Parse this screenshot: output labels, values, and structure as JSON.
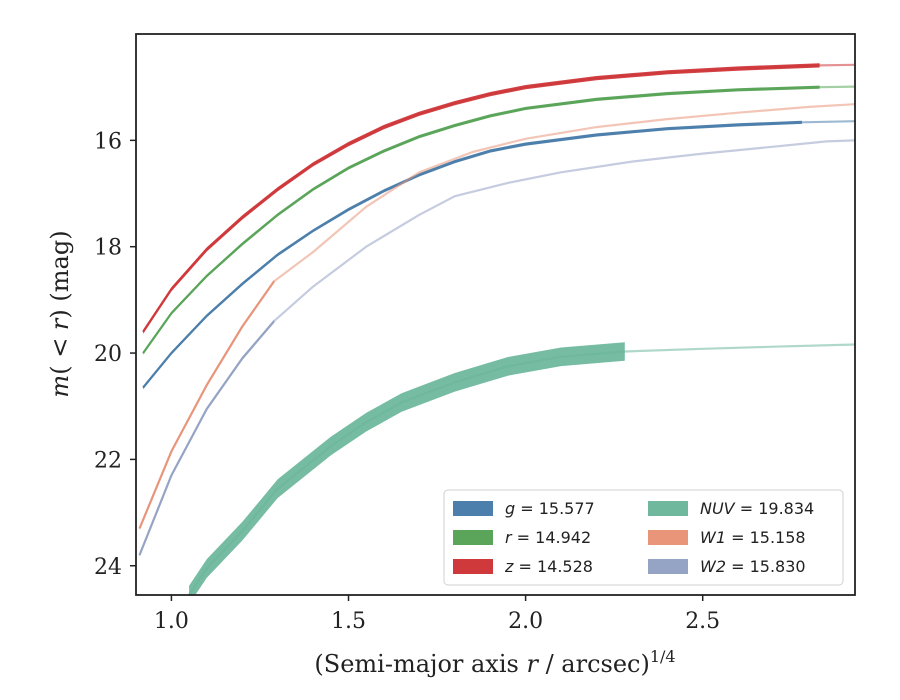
{
  "chart_data": {
    "type": "line",
    "title": "",
    "xlabel": "(Semi-major axis r / arcsec)^{1/4}",
    "xlabel_parts": {
      "pre": "(Semi-major axis ",
      "var": "r",
      "post": " / arcsec)",
      "sup": "1/4"
    },
    "ylabel": "m(<r) (mag)",
    "ylabel_parts": {
      "var1": "m",
      "open": "( < ",
      "var2": "r",
      "close": ") (mag)"
    },
    "xlim": [
      0.9,
      2.93
    ],
    "ylim": [
      24.55,
      14.0
    ],
    "y_inverted": true,
    "xticks": [
      1.0,
      1.5,
      2.0,
      2.5
    ],
    "xtick_labels": [
      "1.0",
      "1.5",
      "2.0",
      "2.5"
    ],
    "yticks": [
      16,
      18,
      20,
      22,
      24
    ],
    "ytick_labels": [
      "16",
      "18",
      "20",
      "22",
      "24"
    ],
    "grid": false,
    "legend_position": "lower-right",
    "series": [
      {
        "key": "g",
        "name_var": "g",
        "name_value": "15.577",
        "color": "#4c7fab",
        "band_width": 0.06,
        "fade_from": 2.78,
        "x": [
          0.92,
          1.0,
          1.1,
          1.2,
          1.3,
          1.4,
          1.5,
          1.6,
          1.7,
          1.8,
          1.9,
          2.0,
          2.2,
          2.4,
          2.6,
          2.78,
          2.93
        ],
        "y": [
          20.65,
          20.0,
          19.3,
          18.7,
          18.15,
          17.7,
          17.3,
          16.95,
          16.65,
          16.4,
          16.2,
          16.07,
          15.9,
          15.78,
          15.71,
          15.66,
          15.64
        ]
      },
      {
        "key": "r",
        "name_var": "r",
        "name_value": "14.942",
        "color": "#5aa55a",
        "band_width": 0.06,
        "fade_from": 2.83,
        "x": [
          0.92,
          1.0,
          1.1,
          1.2,
          1.3,
          1.4,
          1.5,
          1.6,
          1.7,
          1.8,
          1.9,
          2.0,
          2.2,
          2.4,
          2.6,
          2.83,
          2.93
        ],
        "y": [
          20.0,
          19.25,
          18.55,
          17.95,
          17.4,
          16.92,
          16.52,
          16.2,
          15.93,
          15.72,
          15.54,
          15.4,
          15.23,
          15.12,
          15.05,
          15.0,
          14.99
        ]
      },
      {
        "key": "z",
        "name_var": "z",
        "name_value": "14.528",
        "color": "#d0393c",
        "band_width": 0.08,
        "fade_from": 2.83,
        "x": [
          0.92,
          1.0,
          1.1,
          1.2,
          1.3,
          1.4,
          1.5,
          1.6,
          1.7,
          1.8,
          1.9,
          2.0,
          2.2,
          2.4,
          2.6,
          2.83,
          2.93
        ],
        "y": [
          19.6,
          18.8,
          18.05,
          17.45,
          16.92,
          16.45,
          16.07,
          15.75,
          15.5,
          15.3,
          15.13,
          15.0,
          14.83,
          14.72,
          14.65,
          14.59,
          14.58
        ]
      },
      {
        "key": "NUV",
        "name_var": "NUV",
        "name_value": "19.834",
        "color": "#6fb89e",
        "band_width": 0.35,
        "fade_from": 2.28,
        "x": [
          1.05,
          1.1,
          1.2,
          1.3,
          1.45,
          1.55,
          1.65,
          1.8,
          1.95,
          2.1,
          2.28,
          2.5,
          2.7,
          2.93
        ],
        "y": [
          24.55,
          24.05,
          23.35,
          22.55,
          21.75,
          21.3,
          20.93,
          20.55,
          20.25,
          20.07,
          19.97,
          19.92,
          19.88,
          19.84
        ]
      },
      {
        "key": "W1",
        "name_var": "W1",
        "name_value": "15.158",
        "color": "#e8957a",
        "band_width": 0.06,
        "fade_from": 1.29,
        "x": [
          0.91,
          1.0,
          1.1,
          1.2,
          1.29,
          1.4,
          1.55,
          1.7,
          1.85,
          2.0,
          2.2,
          2.4,
          2.6,
          2.8,
          2.93
        ],
        "y": [
          23.3,
          21.85,
          20.6,
          19.5,
          18.65,
          18.1,
          17.25,
          16.6,
          16.22,
          15.97,
          15.75,
          15.6,
          15.48,
          15.37,
          15.32
        ]
      },
      {
        "key": "W2",
        "name_var": "W2",
        "name_value": "15.830",
        "color": "#95a3c4",
        "band_width": 0.06,
        "fade_from": 1.29,
        "x": [
          0.91,
          1.0,
          1.1,
          1.2,
          1.29,
          1.4,
          1.55,
          1.7,
          1.8,
          1.95,
          2.1,
          2.3,
          2.5,
          2.7,
          2.85,
          2.93
        ],
        "y": [
          23.8,
          22.3,
          21.05,
          20.1,
          19.4,
          18.75,
          18.0,
          17.4,
          17.05,
          16.8,
          16.6,
          16.4,
          16.25,
          16.12,
          16.02,
          16.0
        ]
      }
    ]
  }
}
